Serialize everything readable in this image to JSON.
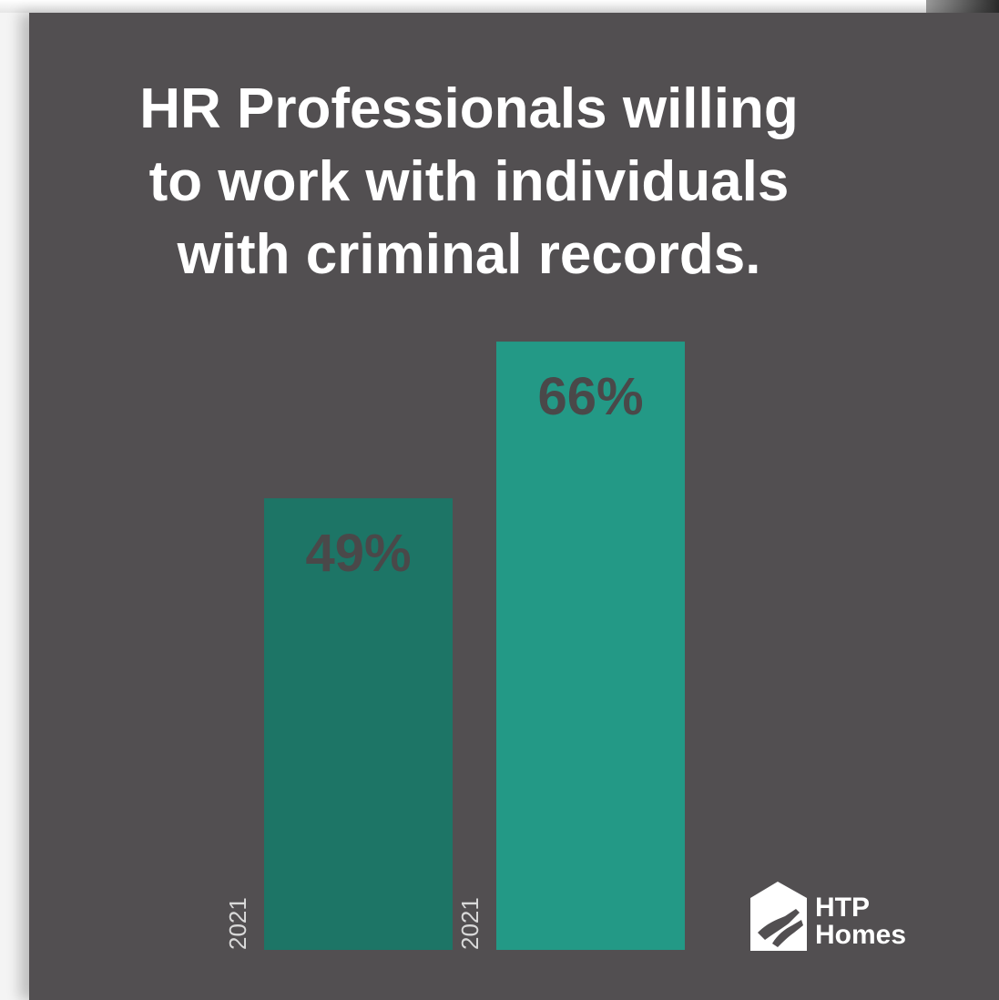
{
  "chart_data": {
    "type": "bar",
    "title_lines": [
      "HR Professionals willing",
      "to work with individuals",
      "with criminal records."
    ],
    "categories": [
      "2021",
      "2021"
    ],
    "values": [
      49,
      66
    ],
    "value_labels": [
      "49%",
      "66%"
    ],
    "ylim": [
      0,
      100
    ],
    "grid": false,
    "bar_colors": [
      "#1d7566",
      "#239986"
    ],
    "label_color": "#4a4849"
  },
  "logo": {
    "lines": [
      "HTP",
      "Homes"
    ]
  },
  "colors": {
    "background": "#524f51",
    "title": "#ffffff"
  }
}
